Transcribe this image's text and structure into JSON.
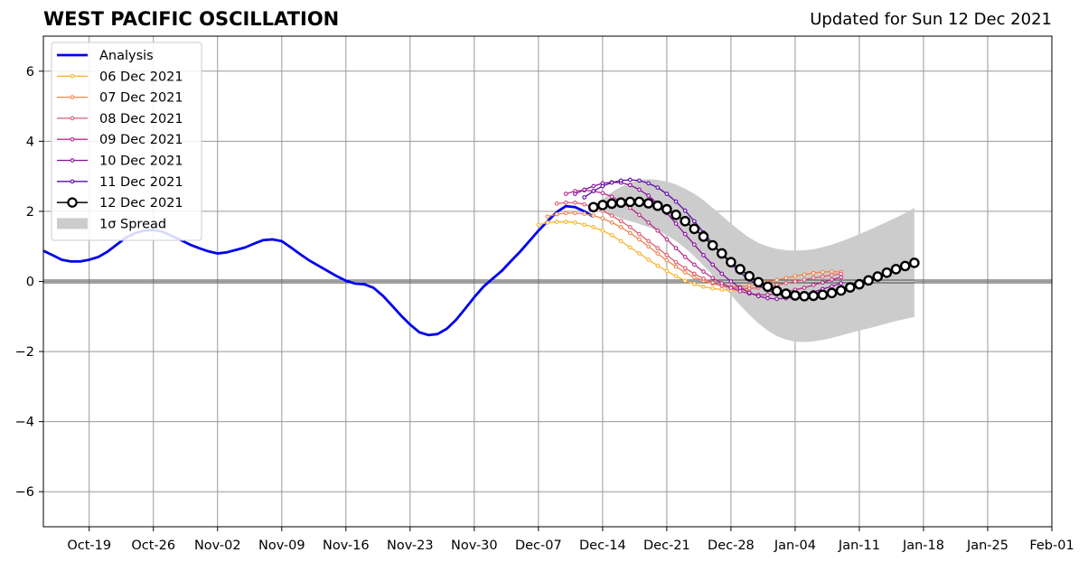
{
  "header": {
    "title": "WEST PACIFIC OSCILLATION",
    "updated": "Updated for Sun 12 Dec 2021"
  },
  "chart_data": {
    "type": "line",
    "title": "WEST PACIFIC OSCILLATION",
    "subtitle": "Updated for Sun 12 Dec 2021",
    "xlabel": "",
    "ylabel": "",
    "x_axis": {
      "type": "date",
      "range": [
        "2021-10-14",
        "2022-02-01"
      ],
      "tick_dates": [
        "2021-10-19",
        "2021-10-26",
        "2021-11-02",
        "2021-11-09",
        "2021-11-16",
        "2021-11-23",
        "2021-11-30",
        "2021-12-07",
        "2021-12-14",
        "2021-12-21",
        "2021-12-28",
        "2022-01-04",
        "2022-01-11",
        "2022-01-18",
        "2022-01-25",
        "2022-02-01"
      ],
      "tick_labels": [
        "Oct-19",
        "Oct-26",
        "Nov-02",
        "Nov-09",
        "Nov-16",
        "Nov-23",
        "Nov-30",
        "Dec-07",
        "Dec-14",
        "Dec-21",
        "Dec-28",
        "Jan-04",
        "Jan-11",
        "Jan-18",
        "Jan-25",
        "Feb-01"
      ]
    },
    "y_axis": {
      "range": [
        -7,
        7
      ],
      "ticks": [
        -6,
        -4,
        -2,
        0,
        2,
        4,
        6
      ],
      "tick_labels": [
        "−6",
        "−4",
        "−2",
        "0",
        "2",
        "4",
        "6"
      ]
    },
    "grid": true,
    "legend_position": "top-left",
    "analysis": {
      "name": "Analysis",
      "color": "#0000ee",
      "points": [
        [
          "2021-10-13",
          1.0
        ],
        [
          "2021-10-15",
          0.75
        ],
        [
          "2021-10-16",
          0.62
        ],
        [
          "2021-10-17",
          0.57
        ],
        [
          "2021-10-18",
          0.57
        ],
        [
          "2021-10-19",
          0.62
        ],
        [
          "2021-10-20",
          0.7
        ],
        [
          "2021-10-21",
          0.85
        ],
        [
          "2021-10-22",
          1.05
        ],
        [
          "2021-10-23",
          1.25
        ],
        [
          "2021-10-24",
          1.38
        ],
        [
          "2021-10-25",
          1.45
        ],
        [
          "2021-10-26",
          1.47
        ],
        [
          "2021-10-27",
          1.42
        ],
        [
          "2021-10-28",
          1.3
        ],
        [
          "2021-10-29",
          1.18
        ],
        [
          "2021-10-30",
          1.05
        ],
        [
          "2021-10-31",
          0.95
        ],
        [
          "2021-11-01",
          0.86
        ],
        [
          "2021-11-02",
          0.8
        ],
        [
          "2021-11-03",
          0.83
        ],
        [
          "2021-11-04",
          0.9
        ],
        [
          "2021-11-05",
          0.97
        ],
        [
          "2021-11-06",
          1.08
        ],
        [
          "2021-11-07",
          1.18
        ],
        [
          "2021-11-08",
          1.2
        ],
        [
          "2021-11-09",
          1.15
        ],
        [
          "2021-11-10",
          0.97
        ],
        [
          "2021-11-11",
          0.78
        ],
        [
          "2021-11-12",
          0.6
        ],
        [
          "2021-11-13",
          0.45
        ],
        [
          "2021-11-14",
          0.3
        ],
        [
          "2021-11-15",
          0.15
        ],
        [
          "2021-11-16",
          0.02
        ],
        [
          "2021-11-17",
          -0.06
        ],
        [
          "2021-11-18",
          -0.08
        ],
        [
          "2021-11-19",
          -0.18
        ],
        [
          "2021-11-20",
          -0.4
        ],
        [
          "2021-11-21",
          -0.68
        ],
        [
          "2021-11-22",
          -0.97
        ],
        [
          "2021-11-23",
          -1.23
        ],
        [
          "2021-11-24",
          -1.45
        ],
        [
          "2021-11-25",
          -1.53
        ],
        [
          "2021-11-26",
          -1.5
        ],
        [
          "2021-11-27",
          -1.35
        ],
        [
          "2021-11-28",
          -1.1
        ],
        [
          "2021-11-29",
          -0.78
        ],
        [
          "2021-11-30",
          -0.45
        ],
        [
          "2021-12-01",
          -0.15
        ],
        [
          "2021-12-02",
          0.08
        ],
        [
          "2021-12-03",
          0.3
        ],
        [
          "2021-12-04",
          0.58
        ],
        [
          "2021-12-05",
          0.85
        ],
        [
          "2021-12-06",
          1.15
        ],
        [
          "2021-12-07",
          1.45
        ],
        [
          "2021-12-08",
          1.72
        ],
        [
          "2021-12-09",
          1.98
        ],
        [
          "2021-12-10",
          2.15
        ],
        [
          "2021-12-11",
          2.12
        ],
        [
          "2021-12-12",
          2.0
        ],
        [
          "2021-12-13",
          1.85
        ]
      ]
    },
    "series": [
      {
        "name": "06 Dec 2021",
        "color": "#fbb430",
        "start": "2021-12-07",
        "values": [
          1.62,
          1.68,
          1.7,
          1.7,
          1.68,
          1.62,
          1.55,
          1.45,
          1.32,
          1.15,
          0.97,
          0.8,
          0.62,
          0.45,
          0.3,
          0.15,
          0.02,
          -0.08,
          -0.15,
          -0.2,
          -0.23,
          -0.25,
          -0.25,
          -0.22
        ]
      },
      {
        "name": "07 Dec 2021",
        "color": "#f0854a",
        "start": "2021-12-08",
        "values": [
          1.85,
          1.92,
          1.95,
          1.95,
          1.93,
          1.88,
          1.8,
          1.68,
          1.55,
          1.38,
          1.2,
          1.0,
          0.8,
          0.6,
          0.42,
          0.26,
          0.12,
          0.02,
          -0.06,
          -0.12,
          -0.15,
          -0.15,
          -0.12,
          -0.08,
          -0.02,
          0.04,
          0.1,
          0.15,
          0.2,
          0.24,
          0.27,
          0.28,
          0.27
        ]
      },
      {
        "name": "08 Dec 2021",
        "color": "#dc5c70",
        "start": "2021-12-09",
        "values": [
          2.22,
          2.25,
          2.25,
          2.2,
          2.12,
          2.02,
          1.88,
          1.72,
          1.55,
          1.35,
          1.15,
          0.95,
          0.75,
          0.55,
          0.38,
          0.22,
          0.08,
          -0.03,
          -0.12,
          -0.18,
          -0.2,
          -0.2,
          -0.18,
          -0.14,
          -0.1,
          -0.05,
          0.0,
          0.05,
          0.1,
          0.14,
          0.18,
          0.22
        ]
      },
      {
        "name": "09 Dec 2021",
        "color": "#b82d8c",
        "start": "2021-12-10",
        "values": [
          2.5,
          2.58,
          2.6,
          2.58,
          2.52,
          2.42,
          2.28,
          2.1,
          1.9,
          1.68,
          1.45,
          1.2,
          0.95,
          0.7,
          0.48,
          0.28,
          0.1,
          -0.05,
          -0.18,
          -0.28,
          -0.35,
          -0.38,
          -0.38,
          -0.35,
          -0.3,
          -0.24,
          -0.18,
          -0.1,
          -0.03,
          0.05,
          0.12
        ]
      },
      {
        "name": "10 Dec 2021",
        "color": "#8a0ea0",
        "start": "2021-12-11",
        "values": [
          2.5,
          2.62,
          2.72,
          2.8,
          2.83,
          2.82,
          2.75,
          2.62,
          2.45,
          2.22,
          1.95,
          1.65,
          1.35,
          1.05,
          0.75,
          0.48,
          0.22,
          0.0,
          -0.18,
          -0.32,
          -0.42,
          -0.48,
          -0.5,
          -0.48,
          -0.44,
          -0.38,
          -0.3,
          -0.22,
          -0.14,
          -0.05
        ]
      },
      {
        "name": "11 Dec 2021",
        "color": "#5a0ba0",
        "start": "2021-12-12",
        "values": [
          2.4,
          2.58,
          2.72,
          2.82,
          2.88,
          2.9,
          2.88,
          2.8,
          2.68,
          2.5,
          2.28,
          2.02,
          1.72,
          1.4,
          1.08,
          0.78,
          0.5,
          0.25,
          0.05,
          -0.12,
          -0.25,
          -0.35,
          -0.42,
          -0.45,
          -0.45,
          -0.42,
          -0.36,
          -0.28,
          -0.2
        ]
      },
      {
        "name": "12 Dec 2021",
        "color": "#000000",
        "start": "2021-12-13",
        "values": [
          2.12,
          2.18,
          2.22,
          2.25,
          2.27,
          2.27,
          2.23,
          2.16,
          2.06,
          1.9,
          1.72,
          1.5,
          1.28,
          1.03,
          0.8,
          0.55,
          0.35,
          0.15,
          -0.02,
          -0.15,
          -0.27,
          -0.35,
          -0.4,
          -0.42,
          -0.41,
          -0.38,
          -0.33,
          -0.26,
          -0.17,
          -0.08,
          0.03,
          0.14,
          0.25,
          0.35,
          0.44,
          0.53
        ]
      }
    ],
    "spread": {
      "name": "1σ Spread",
      "color": "#cccccc",
      "start": "2021-12-13",
      "upper": [
        2.12,
        2.35,
        2.55,
        2.7,
        2.82,
        2.9,
        2.92,
        2.9,
        2.85,
        2.77,
        2.65,
        2.5,
        2.32,
        2.1,
        1.88,
        1.65,
        1.44,
        1.25,
        1.1,
        1.0,
        0.93,
        0.89,
        0.88,
        0.89,
        0.92,
        0.98,
        1.05,
        1.14,
        1.24,
        1.35,
        1.46,
        1.58,
        1.7,
        1.82,
        1.95,
        2.1
      ],
      "lower": [
        2.12,
        2.0,
        1.9,
        1.8,
        1.72,
        1.64,
        1.55,
        1.45,
        1.32,
        1.15,
        0.95,
        0.72,
        0.45,
        0.18,
        -0.1,
        -0.38,
        -0.68,
        -0.95,
        -1.2,
        -1.4,
        -1.56,
        -1.66,
        -1.72,
        -1.73,
        -1.71,
        -1.67,
        -1.61,
        -1.54,
        -1.47,
        -1.4,
        -1.34,
        -1.27,
        -1.2,
        -1.13,
        -1.07,
        -1.02
      ]
    }
  }
}
